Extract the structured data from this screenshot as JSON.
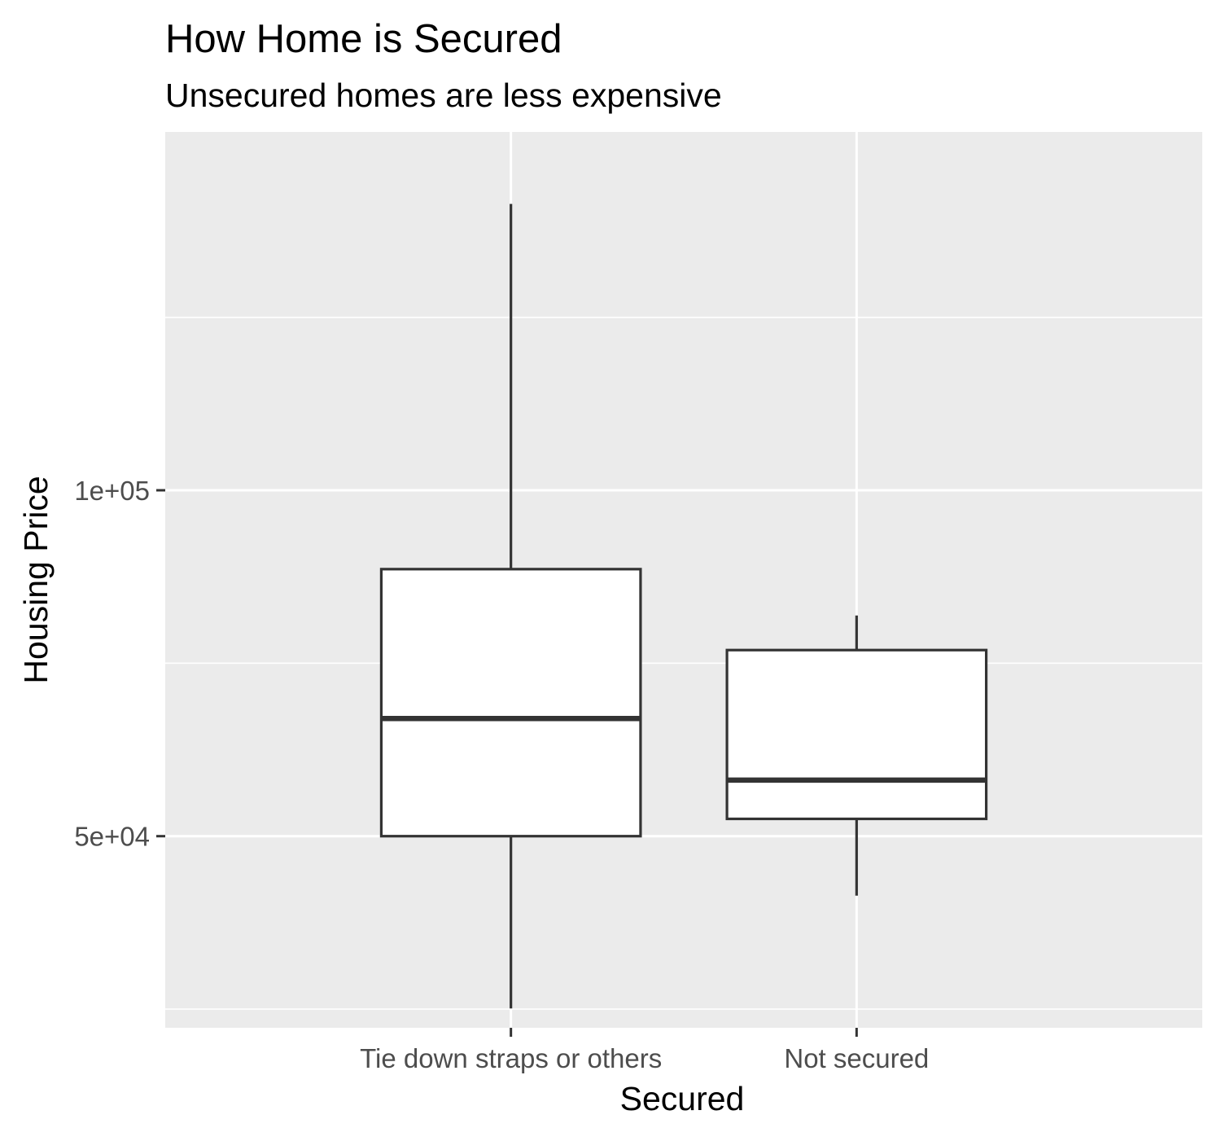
{
  "chart_data": {
    "type": "boxplot",
    "title": "How Home is Secured",
    "subtitle": "Unsecured homes are less expensive",
    "xlabel": "Secured",
    "ylabel": "Housing Price",
    "categories": [
      "Tie down straps or others",
      "Not secured"
    ],
    "ylim": [
      22300,
      151800
    ],
    "yticks": [
      {
        "value": 50000,
        "label": "5e+04"
      },
      {
        "value": 100000,
        "label": "1e+05"
      }
    ],
    "y_minor_gridlines": [
      25000,
      75000,
      125000
    ],
    "grid": true,
    "boxes": [
      {
        "category": "Tie down straps or others",
        "min": 25100,
        "q1": 50000,
        "median": 67000,
        "q3": 88600,
        "max": 141400
      },
      {
        "category": "Not secured",
        "min": 41400,
        "q1": 52500,
        "median": 58100,
        "q3": 76900,
        "max": 81900
      }
    ],
    "colors": {
      "panel_background": "#ebebeb",
      "grid_line": "#ffffff",
      "box_fill": "#ffffff",
      "box_stroke": "#333333",
      "tick_text": "#4d4d4d",
      "tick_mark": "#333333",
      "title_text": "#000000"
    }
  }
}
